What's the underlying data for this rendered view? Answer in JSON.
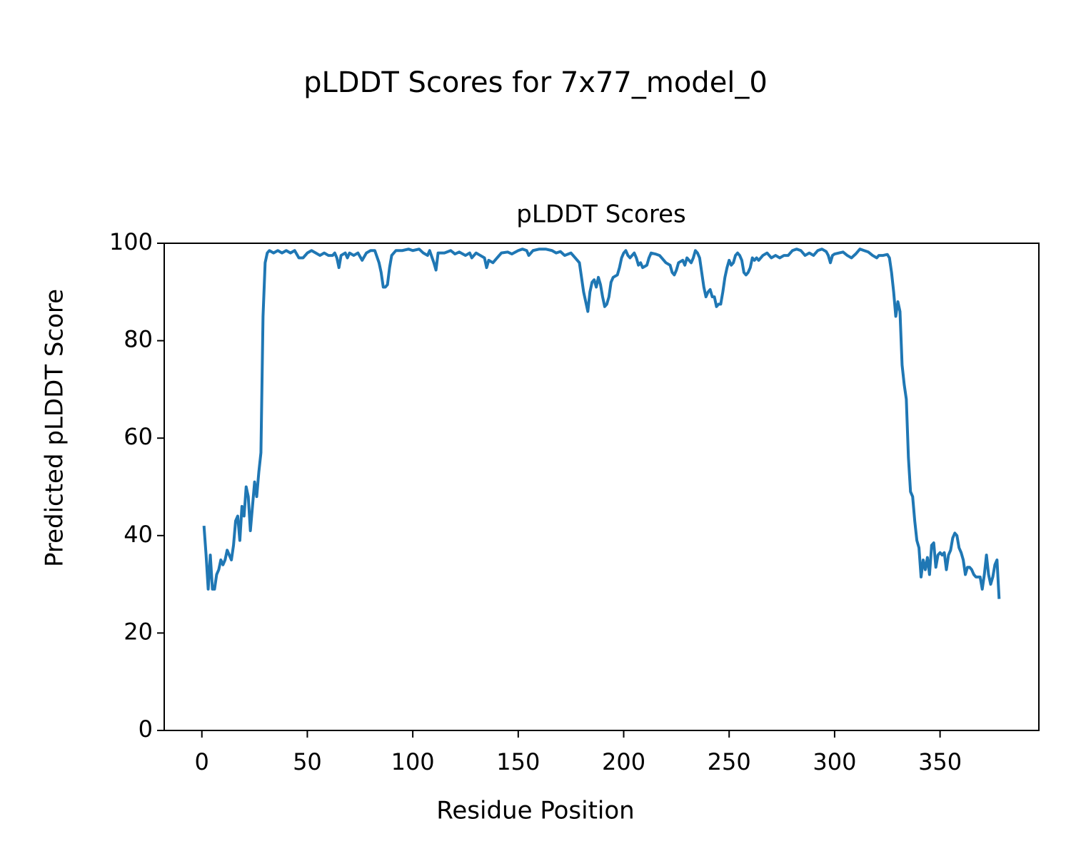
{
  "chart_data": {
    "type": "line",
    "title": "pLDDT Scores for 7x77_model_0",
    "subtitle": "pLDDT Scores",
    "xlabel": "Residue Position",
    "ylabel": "Predicted pLDDT Score",
    "xlim": [
      -17.85,
      396.85
    ],
    "ylim": [
      0,
      100
    ],
    "xticks": [
      0,
      50,
      100,
      150,
      200,
      250,
      300,
      350
    ],
    "yticks": [
      0,
      20,
      40,
      60,
      80,
      100
    ],
    "grid": false,
    "series": [
      {
        "name": "pLDDT",
        "color": "#1f77b4",
        "x": [
          1,
          2,
          3,
          4,
          5,
          6,
          7,
          8,
          9,
          10,
          11,
          12,
          13,
          14,
          15,
          16,
          17,
          18,
          19,
          20,
          21,
          22,
          23,
          24,
          25,
          26,
          27,
          28,
          29,
          30,
          31,
          32,
          34,
          36,
          38,
          40,
          42,
          44,
          46,
          48,
          50,
          52,
          54,
          56,
          58,
          60,
          62,
          63,
          64,
          65,
          66,
          68,
          69,
          70,
          72,
          74,
          76,
          78,
          80,
          82,
          84,
          85,
          86,
          87,
          88,
          89,
          90,
          92,
          95,
          98,
          100,
          103,
          105,
          107,
          108,
          110,
          111,
          112,
          115,
          118,
          120,
          122,
          125,
          127,
          128,
          130,
          132,
          134,
          135,
          136,
          138,
          140,
          142,
          145,
          147,
          150,
          152,
          154,
          155,
          157,
          160,
          163,
          166,
          168,
          170,
          172,
          175,
          177,
          179,
          180,
          181,
          182,
          183,
          184,
          185,
          186,
          187,
          188,
          189,
          190,
          191,
          192,
          193,
          194,
          195,
          197,
          198,
          199,
          200,
          201,
          202,
          203,
          205,
          206,
          207,
          208,
          209,
          211,
          212,
          213,
          215,
          217,
          218,
          220,
          222,
          223,
          224,
          225,
          226,
          228,
          229,
          230,
          231,
          232,
          233,
          234,
          235,
          236,
          237,
          238,
          239,
          240,
          241,
          242,
          243,
          244,
          245,
          246,
          247,
          248,
          249,
          250,
          251,
          252,
          253,
          254,
          255,
          256,
          257,
          258,
          259,
          260,
          261,
          262,
          263,
          264,
          266,
          268,
          270,
          272,
          274,
          276,
          278,
          280,
          282,
          284,
          286,
          288,
          290,
          292,
          294,
          296,
          297,
          298,
          299,
          300,
          302,
          304,
          306,
          308,
          310,
          312,
          314,
          316,
          318,
          320,
          321,
          323,
          325,
          326,
          327,
          328,
          329,
          330,
          331,
          332,
          333,
          334,
          335,
          336,
          337,
          338,
          339,
          340,
          341,
          342,
          343,
          344,
          345,
          346,
          347,
          348,
          349,
          350,
          351,
          352,
          353,
          354,
          355,
          356,
          357,
          358,
          359,
          360,
          361,
          362,
          363,
          364,
          365,
          366,
          367,
          368,
          369,
          370,
          371,
          372,
          373,
          374,
          375,
          376,
          377,
          378
        ],
        "values": [
          42,
          36,
          29,
          36,
          29,
          29,
          32,
          33,
          35,
          34,
          35,
          37,
          36,
          35,
          38,
          43,
          44,
          39,
          46,
          44,
          50,
          48,
          41,
          46,
          51,
          48,
          53,
          57,
          85,
          96,
          98,
          98.5,
          98,
          98.5,
          98,
          98.5,
          98,
          98.5,
          97,
          97,
          98,
          98.5,
          98,
          97.5,
          98,
          97.5,
          97.5,
          98,
          97,
          95,
          97.5,
          98,
          97,
          98,
          97.5,
          98,
          96.5,
          98,
          98.5,
          98.5,
          96,
          94,
          91,
          91,
          91.5,
          95,
          97.5,
          98.5,
          98.5,
          98.8,
          98.5,
          98.8,
          98,
          97.5,
          98.5,
          96,
          94.5,
          98,
          98,
          98.5,
          97.8,
          98.2,
          97.5,
          98,
          97,
          98,
          97.5,
          97,
          95,
          96.5,
          96,
          97,
          98,
          98.2,
          97.8,
          98.5,
          98.8,
          98.5,
          97.5,
          98.5,
          98.8,
          98.8,
          98.5,
          98,
          98.3,
          97.5,
          98,
          97,
          96,
          93,
          90,
          88,
          86,
          90,
          92,
          92.5,
          91,
          93,
          91.5,
          89,
          87,
          87.5,
          89,
          92,
          93,
          93.5,
          95,
          97,
          98,
          98.5,
          97.5,
          97,
          98,
          97,
          95.5,
          96,
          95,
          95.5,
          97,
          98,
          97.8,
          97.5,
          97,
          96,
          95.5,
          94,
          93.5,
          94.5,
          96,
          96.5,
          95.5,
          97,
          96.5,
          96,
          97,
          98.5,
          98,
          97,
          94,
          91,
          89,
          90,
          90.5,
          89,
          89,
          87,
          87.5,
          87.5,
          90,
          93,
          95,
          96.5,
          95.5,
          96,
          97.5,
          98,
          97.5,
          96.5,
          94,
          93.5,
          94,
          95,
          97,
          96.5,
          97,
          96.5,
          97.5,
          98,
          97,
          97.5,
          97,
          97.5,
          97.5,
          98.5,
          98.8,
          98.5,
          97.5,
          98,
          97.5,
          98.5,
          98.8,
          98.3,
          97.5,
          96,
          97.5,
          97.8,
          98,
          98.2,
          97.5,
          97,
          97.8,
          98.8,
          98.5,
          98.2,
          97.5,
          97,
          97.5,
          97.5,
          97.7,
          97,
          94,
          90,
          85,
          88,
          86,
          75,
          71,
          68,
          56,
          49,
          48,
          43,
          39,
          37.5,
          31.5,
          35,
          33,
          35.5,
          32,
          38,
          38.5,
          33.5,
          36,
          36.5,
          36,
          36.5,
          33,
          36,
          37,
          39.5,
          40.5,
          40,
          37.5,
          36.5,
          35,
          32,
          33.5,
          33.5,
          33,
          32,
          31.5,
          31.5,
          31.5,
          29,
          32,
          36,
          32,
          30,
          31.5,
          34,
          35,
          27
        ]
      }
    ]
  }
}
